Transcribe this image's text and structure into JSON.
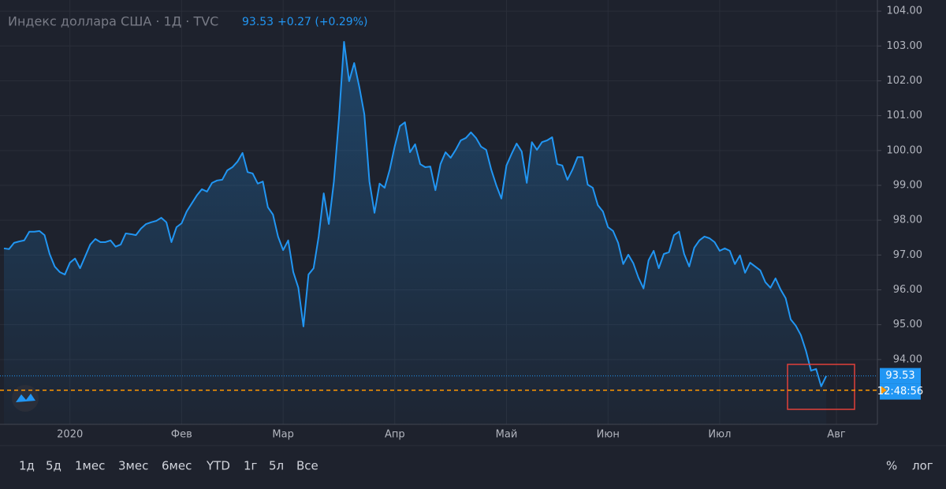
{
  "chart_data": {
    "type": "area",
    "title": "Индекс доллара США · 1Д · TVC",
    "change": "+0.27 (+0.29%)",
    "color": "#2196f3",
    "grid": true,
    "categories": [
      null,
      null,
      null,
      null,
      null,
      null,
      null,
      null,
      null,
      null,
      null,
      null,
      null,
      "2020",
      null,
      null,
      null,
      null,
      null,
      null,
      null,
      null,
      null,
      null,
      null,
      null,
      null,
      null,
      null,
      null,
      null,
      null,
      null,
      null,
      null,
      "Фев",
      null,
      null,
      null,
      null,
      null,
      null,
      null,
      null,
      null,
      null,
      null,
      null,
      null,
      null,
      null,
      null,
      null,
      null,
      null,
      "Мар",
      null,
      null,
      null,
      null,
      null,
      null,
      null,
      null,
      null,
      null,
      null,
      null,
      null,
      null,
      null,
      null,
      null,
      null,
      null,
      null,
      null,
      "Апр",
      null,
      null,
      null,
      null,
      null,
      null,
      null,
      null,
      null,
      null,
      null,
      null,
      null,
      null,
      null,
      null,
      null,
      null,
      null,
      null,
      null,
      "Май",
      null,
      null,
      null,
      null,
      null,
      null,
      null,
      null,
      null,
      null,
      null,
      null,
      null,
      null,
      null,
      null,
      null,
      null,
      null,
      "Июн",
      null,
      null,
      null,
      null,
      null,
      null,
      null,
      null,
      null,
      null,
      null,
      null,
      null,
      null,
      null,
      null,
      null,
      null,
      null,
      null,
      null,
      "Июл",
      null,
      null,
      null,
      null,
      null,
      null,
      null,
      null,
      null,
      null,
      null,
      null,
      null,
      null,
      null,
      null,
      null,
      null,
      null,
      null,
      null,
      null,
      "Авг"
    ],
    "values": [
      97.19,
      97.17,
      97.35,
      97.39,
      97.42,
      97.67,
      97.67,
      97.69,
      97.57,
      97.03,
      96.67,
      96.51,
      96.44,
      96.78,
      96.9,
      96.62,
      96.96,
      97.3,
      97.46,
      97.37,
      97.37,
      97.42,
      97.24,
      97.3,
      97.62,
      97.6,
      97.57,
      97.76,
      97.89,
      97.94,
      97.98,
      98.07,
      97.94,
      97.37,
      97.8,
      97.91,
      98.25,
      98.48,
      98.71,
      98.89,
      98.82,
      99.07,
      99.14,
      99.16,
      99.43,
      99.52,
      99.68,
      99.93,
      99.38,
      99.34,
      99.05,
      99.11,
      98.37,
      98.16,
      97.53,
      97.14,
      97.42,
      96.51,
      96.06,
      94.95,
      96.44,
      96.62,
      97.53,
      98.77,
      97.89,
      99.11,
      100.92,
      103.12,
      101.99,
      102.51,
      101.83,
      101.04,
      99.11,
      98.21,
      99.05,
      98.93,
      99.45,
      100.13,
      100.7,
      100.81,
      99.95,
      100.18,
      99.61,
      99.52,
      99.54,
      98.86,
      99.61,
      99.95,
      99.79,
      100.02,
      100.29,
      100.36,
      100.52,
      100.36,
      100.11,
      100.02,
      99.45,
      99.0,
      98.62,
      99.57,
      99.9,
      100.2,
      99.97,
      99.07,
      100.24,
      100.02,
      100.24,
      100.29,
      100.38,
      99.61,
      99.57,
      99.16,
      99.45,
      99.81,
      99.81,
      99.02,
      98.93,
      98.43,
      98.25,
      97.8,
      97.69,
      97.35,
      96.74,
      97.01,
      96.76,
      96.35,
      96.04,
      96.85,
      97.12,
      96.62,
      97.03,
      97.08,
      97.57,
      97.67,
      97.03,
      96.67,
      97.21,
      97.42,
      97.53,
      97.48,
      97.37,
      97.12,
      97.19,
      97.12,
      96.74,
      96.99,
      96.49,
      96.78,
      96.67,
      96.56,
      96.22,
      96.06,
      96.33,
      96.01,
      95.76,
      95.15,
      94.97,
      94.7,
      94.25,
      93.68,
      93.73,
      93.23,
      93.53,
      null,
      null
    ],
    "ylim": [
      92.14,
      104.32
    ],
    "yticks": [
      {
        "value": 94,
        "label": "94.00"
      },
      {
        "value": 95,
        "label": "95.00"
      },
      {
        "value": 96,
        "label": "96.00"
      },
      {
        "value": 97,
        "label": "97.00"
      },
      {
        "value": 98,
        "label": "98.00"
      },
      {
        "value": 99,
        "label": "99.00"
      },
      {
        "value": 100,
        "label": "100.00"
      },
      {
        "value": 101,
        "label": "101.00"
      },
      {
        "value": 102,
        "label": "102.00"
      },
      {
        "value": 103,
        "label": "103.00"
      },
      {
        "value": 104,
        "label": "104.00"
      }
    ],
    "price_line": {
      "value": 93.12,
      "color": "#ff9800",
      "label": "12:48:56"
    }
  },
  "toolbar": {
    "ranges": [
      "1д",
      "5д",
      "1мес",
      "3мес",
      "6мес",
      "YTD",
      "1г",
      "5л",
      "Все"
    ],
    "options": [
      "%",
      "лог"
    ]
  }
}
